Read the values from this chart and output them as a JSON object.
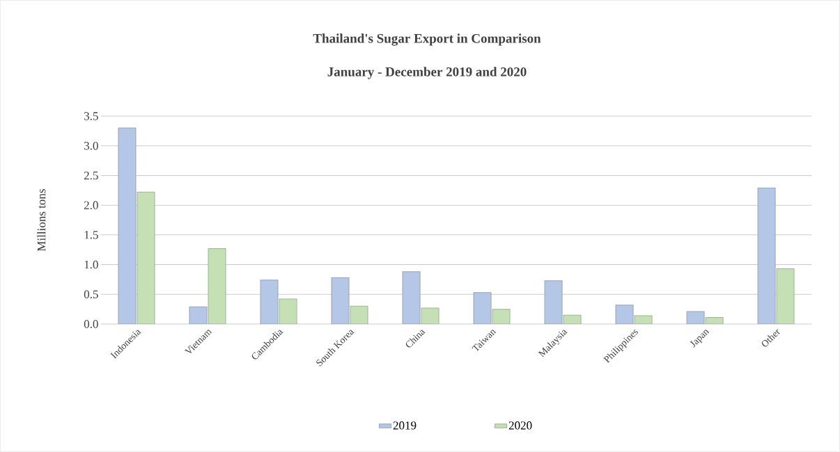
{
  "chart_data": {
    "type": "bar",
    "title": "Thailand's Sugar Export in Comparison",
    "subtitle": "January - December 2019 and 2020",
    "ylabel": "Millions  tons",
    "categories": [
      "Indonesia",
      "Vietnam",
      "Cambodia",
      "South Korea",
      "China",
      "Taiwan",
      "Malaysia",
      "Philippines",
      "Japan",
      "Other"
    ],
    "series": [
      {
        "name": "2019",
        "color": "#b4c7e7",
        "values": [
          3.3,
          0.29,
          0.74,
          0.78,
          0.88,
          0.53,
          0.73,
          0.32,
          0.21,
          2.29
        ]
      },
      {
        "name": "2020",
        "color": "#c5e0b4",
        "values": [
          2.22,
          1.27,
          0.42,
          0.3,
          0.27,
          0.25,
          0.15,
          0.14,
          0.11,
          0.93
        ]
      }
    ],
    "ylim": [
      0,
      3.5
    ],
    "yticks": [
      {
        "value": 0,
        "label": "0.0"
      },
      {
        "value": 0.5,
        "label": "0.5"
      },
      {
        "value": 1,
        "label": "1.0"
      },
      {
        "value": 1.5,
        "label": "1.5"
      },
      {
        "value": 2,
        "label": "2.0"
      },
      {
        "value": 2.5,
        "label": "2.5"
      },
      {
        "value": 3,
        "label": "3.0"
      },
      {
        "value": 3.5,
        "label": "3.5"
      }
    ],
    "grid": "y",
    "legend": "bottom"
  }
}
